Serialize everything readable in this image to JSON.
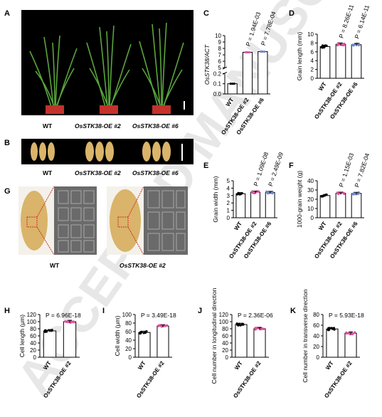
{
  "watermark": "ACCEPTED MANUSCRIPT",
  "panel_letters": {
    "A": "A",
    "B": "B",
    "C": "C",
    "D": "D",
    "E": "E",
    "F": "F",
    "G": "G",
    "H": "H",
    "I": "I",
    "J": "J",
    "K": "K"
  },
  "photo_labels": {
    "A": [
      "WT",
      "OsSTK38-OE #2",
      "OsSTK38-OE #6"
    ],
    "B": [
      "WT",
      "OsSTK38-OE #2",
      "OsSTK38-OE #6"
    ],
    "G": [
      "WT",
      "OsSTK38-OE #2"
    ]
  },
  "colors": {
    "wt": "#000000",
    "oe2": "#e0509c",
    "oe6": "#6f86c9",
    "photo_bg": "#000000",
    "sem_bg": "#6a6a6a",
    "seed": "#d9b46a"
  },
  "chart_data": [
    {
      "id": "C",
      "type": "bar",
      "categories": [
        "WT",
        "OsSTK38-OE #2",
        "OsSTK38-OE #6"
      ],
      "values": [
        0.1,
        7.4,
        7.5
      ],
      "ylabel": "OsSTK38/ACT",
      "yticks_lower": [
        "0.0",
        "0.1",
        "0.2"
      ],
      "yticks_upper": [
        "5",
        "6",
        "7",
        "8",
        "9",
        "10"
      ],
      "pvalues": [
        "",
        "P = 1.94E-03",
        "P = 7.78E-04"
      ],
      "broken_axis": true
    },
    {
      "id": "D",
      "type": "bar",
      "categories": [
        "WT",
        "OsSTK38-OE #2",
        "OsSTK38-OE #6"
      ],
      "values": [
        7.2,
        7.7,
        7.6
      ],
      "ylabel": "Grain length (mm)",
      "ylim": [
        0,
        10
      ],
      "yticks": [
        "0",
        "2",
        "4",
        "6",
        "8",
        "10"
      ],
      "pvalues": [
        "",
        "P = 8.26E-11",
        "P = 6.14E-11"
      ]
    },
    {
      "id": "E",
      "type": "bar",
      "categories": [
        "WT",
        "OsSTK38-OE #2",
        "OsSTK38-OE #6"
      ],
      "values": [
        3.25,
        3.45,
        3.42
      ],
      "ylabel": "Grain width (mm)",
      "ylim": [
        0,
        5
      ],
      "yticks": [
        "0",
        "1",
        "2",
        "3",
        "4",
        "5"
      ],
      "pvalues": [
        "",
        "P = 1.09E-08",
        "P = 2.49E-09"
      ]
    },
    {
      "id": "F",
      "type": "bar",
      "categories": [
        "WT",
        "OsSTK38-OE #2",
        "OsSTK38-OE #6"
      ],
      "values": [
        24,
        26.5,
        26.3
      ],
      "ylabel": "1000-grain weight (g)",
      "ylim": [
        0,
        40
      ],
      "yticks": [
        "0",
        "10",
        "20",
        "30",
        "40"
      ],
      "pvalues": [
        "",
        "P = 1.15E-03",
        "P = 7.82E-04"
      ]
    },
    {
      "id": "H",
      "type": "bar",
      "categories": [
        "WT",
        "OsSTK38-OE #2"
      ],
      "values": [
        74,
        100
      ],
      "ylabel": "Cell length (μm)",
      "ylim": [
        0,
        120
      ],
      "yticks": [
        "0",
        "20",
        "40",
        "60",
        "80",
        "100",
        "120"
      ],
      "pvalue": "P = 6.96E-18"
    },
    {
      "id": "I",
      "type": "bar",
      "categories": [
        "WT",
        "OsSTK38-OE #2"
      ],
      "values": [
        58,
        73
      ],
      "ylabel": "Cell width (μm)",
      "ylim": [
        0,
        100
      ],
      "yticks": [
        "0",
        "20",
        "40",
        "60",
        "80",
        "100"
      ],
      "pvalue": "P = 3.49E-18"
    },
    {
      "id": "J",
      "type": "bar",
      "categories": [
        "WT",
        "OsSTK38-OE #2"
      ],
      "values": [
        92,
        80
      ],
      "ylabel": "Cell number in longitudinal direction",
      "ylim": [
        0,
        120
      ],
      "yticks": [
        "0",
        "20",
        "40",
        "60",
        "80",
        "100",
        "120"
      ],
      "pvalue": "P = 2.36E-06"
    },
    {
      "id": "K",
      "type": "bar",
      "categories": [
        "WT",
        "OsSTK38-OE #2"
      ],
      "values": [
        53,
        45
      ],
      "ylabel": "Cell number in transverse direction",
      "ylim": [
        0,
        80
      ],
      "yticks": [
        "0",
        "20",
        "40",
        "60",
        "80"
      ],
      "pvalue": "P = 5.93E-18"
    }
  ]
}
